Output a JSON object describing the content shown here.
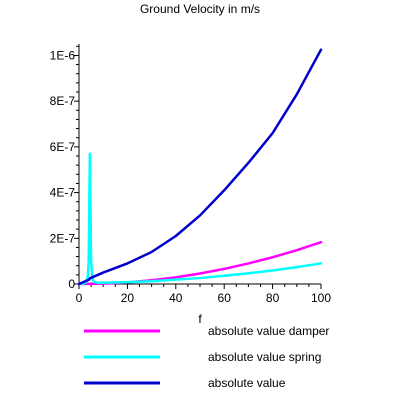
{
  "chart_data": {
    "type": "line",
    "title": "Ground Velocity in m/s",
    "xlabel": "f",
    "ylabel": "",
    "xlim": [
      0,
      100
    ],
    "ylim": [
      0,
      1.05e-06
    ],
    "x_ticks": [
      {
        "value": 0,
        "label": "0"
      },
      {
        "value": 20,
        "label": "20"
      },
      {
        "value": 40,
        "label": "40"
      },
      {
        "value": 60,
        "label": "60"
      },
      {
        "value": 80,
        "label": "80"
      },
      {
        "value": 100,
        "label": "100"
      }
    ],
    "y_ticks": [
      {
        "value": 0,
        "label": "0"
      },
      {
        "value": 2e-07,
        "label": "2E-7"
      },
      {
        "value": 4e-07,
        "label": "4E-7"
      },
      {
        "value": 6e-07,
        "label": "6E-7"
      },
      {
        "value": 8e-07,
        "label": "8E-7"
      },
      {
        "value": 1e-06,
        "label": "1E-6"
      }
    ],
    "grid": false,
    "legend_position": "bottom",
    "series": [
      {
        "name": "absolute value damper",
        "color": "#ff00ff",
        "points": [
          [
            0,
            0
          ],
          [
            10,
            1.8e-09
          ],
          [
            20,
            7.3e-09
          ],
          [
            30,
            1.65e-08
          ],
          [
            40,
            2.9e-08
          ],
          [
            50,
            4.6e-08
          ],
          [
            60,
            6.6e-08
          ],
          [
            70,
            9e-08
          ],
          [
            80,
            1.17e-07
          ],
          [
            90,
            1.48e-07
          ],
          [
            100,
            1.83e-07
          ]
        ]
      },
      {
        "name": "absolute value spring",
        "color": "#00ffff",
        "points": [
          [
            0,
            0
          ],
          [
            2,
            2e-09
          ],
          [
            3,
            8e-09
          ],
          [
            3.6,
            3e-08
          ],
          [
            4,
            1e-07
          ],
          [
            4.3,
            4e-07
          ],
          [
            4.5,
            5.7e-07
          ],
          [
            4.7,
            4e-07
          ],
          [
            5,
            1e-07
          ],
          [
            5.5,
            3e-08
          ],
          [
            6,
            1e-08
          ],
          [
            8,
            5e-09
          ],
          [
            10,
            6e-09
          ],
          [
            20,
            8e-09
          ],
          [
            30,
            1.2e-08
          ],
          [
            40,
            1.9e-08
          ],
          [
            50,
            2.6e-08
          ],
          [
            60,
            3.6e-08
          ],
          [
            70,
            4.7e-08
          ],
          [
            80,
            5.9e-08
          ],
          [
            90,
            7.4e-08
          ],
          [
            100,
            9e-08
          ]
        ]
      },
      {
        "name": "absolute value",
        "color": "#0000cc",
        "points": [
          [
            0,
            0
          ],
          [
            4.3,
            2e-08
          ],
          [
            4.5,
            2.5e-08
          ],
          [
            10,
            5e-08
          ],
          [
            20,
            9e-08
          ],
          [
            30,
            1.4e-07
          ],
          [
            40,
            2.1e-07
          ],
          [
            50,
            3e-07
          ],
          [
            60,
            4.1e-07
          ],
          [
            70,
            5.3e-07
          ],
          [
            80,
            6.6e-07
          ],
          [
            90,
            8.3e-07
          ],
          [
            100,
            1.025e-06
          ]
        ]
      }
    ]
  }
}
